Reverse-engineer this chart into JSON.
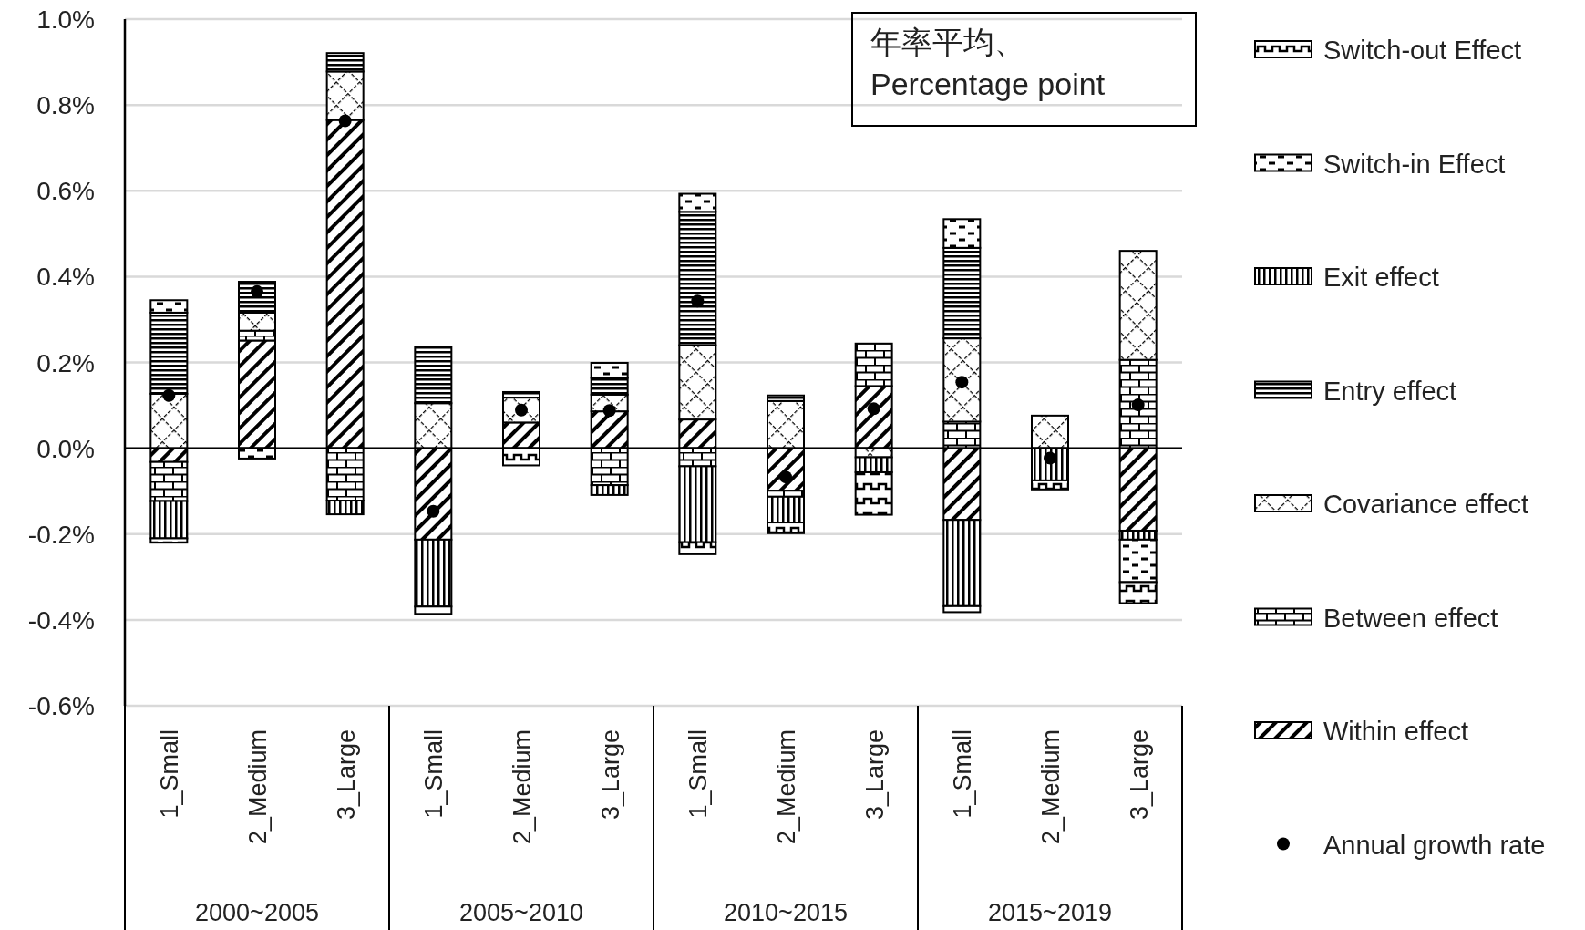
{
  "chart_data": {
    "type": "bar",
    "stacked": true,
    "categories": [
      "1_Small",
      "2_Medium",
      "3_Large",
      "1_Small",
      "2_Medium",
      "3_Large",
      "1_Small",
      "2_Medium",
      "3_Large",
      "1_Small",
      "2_Medium",
      "3_Large"
    ],
    "series": [
      {
        "name": "Within effect",
        "color": "#000000",
        "values": [
          -0.032,
          0.251,
          0.765,
          -0.213,
          0.06,
          0.086,
          0.067,
          -0.099,
          0.145,
          -0.167,
          null,
          -0.192
        ]
      },
      {
        "name": "Between effect",
        "color": "#000000",
        "values": [
          -0.091,
          0.023,
          -0.122,
          null,
          null,
          -0.086,
          -0.042,
          -0.014,
          0.099,
          0.062,
          null,
          0.206
        ]
      },
      {
        "name": "Covariance effect",
        "color": "#000000",
        "values": [
          0.127,
          0.042,
          0.113,
          0.105,
          0.058,
          0.039,
          0.173,
          0.11,
          -0.021,
          0.194,
          0.076,
          0.254
        ]
      },
      {
        "name": "Entry effect",
        "color": "#000000",
        "values": [
          0.189,
          0.072,
          0.043,
          0.131,
          0.013,
          0.039,
          0.311,
          0.013,
          null,
          0.211,
          null,
          null
        ]
      },
      {
        "name": "Exit effect",
        "color": "#000000",
        "values": [
          -0.087,
          null,
          -0.032,
          -0.156,
          null,
          -0.023,
          -0.177,
          -0.06,
          -0.035,
          -0.201,
          -0.075,
          -0.021
        ]
      },
      {
        "name": "Switch-in Effect",
        "color": "#000000",
        "values": [
          0.029,
          -0.024,
          null,
          null,
          null,
          0.035,
          0.042,
          null,
          null,
          0.067,
          null,
          -0.099
        ]
      },
      {
        "name": "Switch-out Effect",
        "color": "#000000",
        "values": [
          -0.01,
          null,
          null,
          -0.017,
          -0.04,
          null,
          -0.028,
          -0.025,
          -0.099,
          -0.014,
          -0.021,
          -0.049
        ]
      },
      {
        "name": "Annual growth rate",
        "type": "scatter",
        "marker": "circle",
        "color": "#000000",
        "values": [
          0.123,
          0.365,
          0.763,
          -0.147,
          0.089,
          0.088,
          0.343,
          -0.067,
          0.092,
          0.154,
          -0.023,
          0.101
        ]
      }
    ],
    "ylim": [
      -0.6,
      1.0
    ],
    "yticks": [
      {
        "value": -0.6,
        "label": "-0.6%"
      },
      {
        "value": -0.4,
        "label": "-0.4%"
      },
      {
        "value": -0.2,
        "label": "-0.2%"
      },
      {
        "value": 0,
        "label": "0.0%"
      },
      {
        "value": 0.2,
        "label": "0.2%"
      },
      {
        "value": 0.4,
        "label": "0.4%"
      },
      {
        "value": 0.6,
        "label": "0.6%"
      },
      {
        "value": 0.8,
        "label": "0.8%"
      },
      {
        "value": 1.0,
        "label": "1.0%"
      }
    ],
    "grid": "y",
    "legend": "right",
    "annotations": [
      "年率平均、\nPercentage point",
      "2000~2005",
      "2005~2010",
      "2010~2015",
      "2015~2019"
    ]
  }
}
